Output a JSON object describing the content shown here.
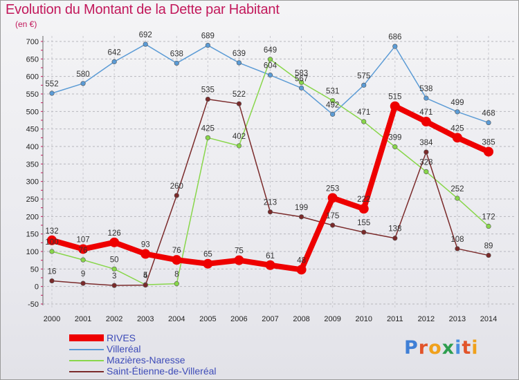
{
  "header": {
    "title": "Evolution du Montant de la Dette par Habitant",
    "subtitle": "(en €)"
  },
  "brand": {
    "logo_letters": [
      "P",
      "r",
      "o",
      "x",
      "i",
      "t",
      "i"
    ],
    "logo_colors": [
      "#3f7fd6",
      "#e2542a",
      "#f0a11c",
      "#2e9e4f",
      "#4a8fe0",
      "#e2542a",
      "#f0a11c"
    ]
  },
  "chart_data": {
    "type": "line",
    "title": "Evolution du Montant de la Dette par Habitant",
    "ylabel": "(en €)",
    "xlabel": "",
    "x": [
      "2000",
      "2001",
      "2002",
      "2003",
      "2004",
      "2005",
      "2006",
      "2007",
      "2008",
      "2009",
      "2010",
      "2011",
      "2012",
      "2013",
      "2014"
    ],
    "ylim": [
      -50,
      700
    ],
    "yticks": [
      -50,
      0,
      50,
      100,
      150,
      200,
      250,
      300,
      350,
      400,
      450,
      500,
      550,
      600,
      650,
      700
    ],
    "grid": "horizontal dashed",
    "legend_position": "bottom-left",
    "series": [
      {
        "name": "RIVES",
        "color": "#ee0000",
        "emphasis": "thick",
        "values": [
          132,
          107,
          126,
          93,
          76,
          65,
          75,
          61,
          48,
          253,
          222,
          515,
          471,
          425,
          385
        ],
        "labels": [
          "132",
          "107",
          "126",
          "93",
          "76",
          "65",
          "75",
          "61",
          "48",
          "253",
          "222",
          "515",
          "471",
          "425",
          "385"
        ]
      },
      {
        "name": "Villeréal",
        "color": "#5b9bd5",
        "values": [
          552,
          580,
          642,
          692,
          638,
          689,
          639,
          604,
          567,
          492,
          575,
          686,
          538,
          499,
          468
        ],
        "labels": [
          "552",
          "580",
          "642",
          "692",
          "638",
          "689",
          "639",
          "604",
          "567",
          "492",
          "575",
          "686",
          "538",
          "499",
          "468"
        ]
      },
      {
        "name": "Mazières-Naresse",
        "color": "#88d64a",
        "values": [
          100,
          76,
          50,
          5,
          8,
          425,
          402,
          649,
          583,
          531,
          471,
          399,
          328,
          252,
          172
        ],
        "labels": [
          "100",
          "76",
          "50",
          "5",
          "8",
          "425",
          "402",
          "649",
          "583",
          "531",
          "471",
          "399",
          "328",
          "252",
          "172"
        ]
      },
      {
        "name": "Saint-Étienne-de-Villeréal",
        "color": "#7a2a2a",
        "values": [
          16,
          9,
          3,
          4,
          260,
          535,
          522,
          213,
          199,
          175,
          155,
          138,
          384,
          108,
          89
        ],
        "labels": [
          "16",
          "9",
          "3",
          "4",
          "260",
          "535",
          "522",
          "213",
          "199",
          "175",
          "155",
          "138",
          "384",
          "108",
          "89"
        ]
      }
    ]
  }
}
